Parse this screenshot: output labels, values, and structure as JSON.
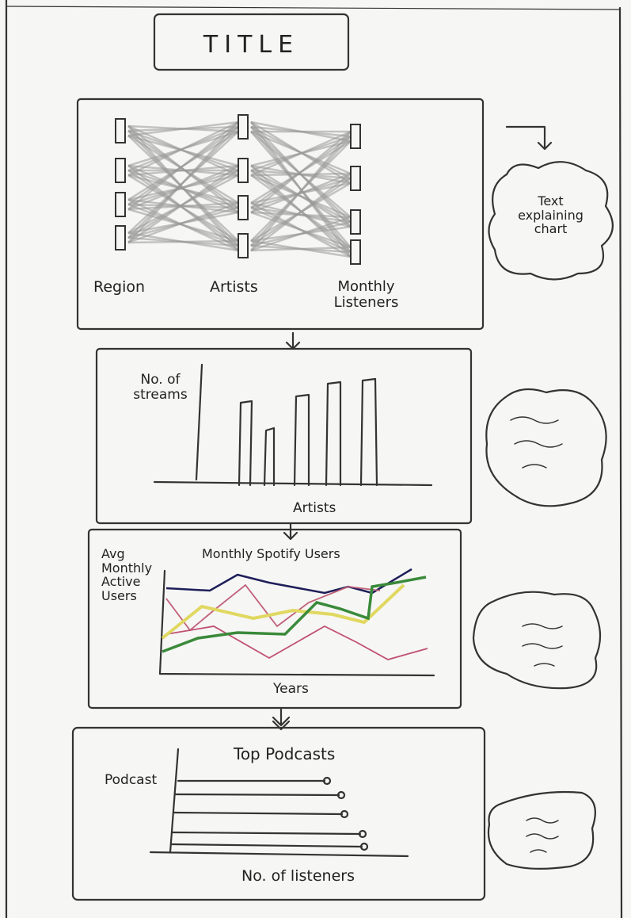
{
  "header": {
    "title": "TITLE"
  },
  "panels": [
    {
      "labels": [
        "Region",
        "Artists",
        "Monthly Listeners"
      ],
      "note": "Text explaining chart"
    },
    {
      "y_label": "No. of streams",
      "x_label": "Artists"
    },
    {
      "title": "Monthly Spotify Users",
      "y_label": "Avg Monthly Active Users",
      "x_label": "Years"
    },
    {
      "title": "Top Podcasts",
      "y_label": "Podcast",
      "x_label": "No. of listeners"
    }
  ]
}
